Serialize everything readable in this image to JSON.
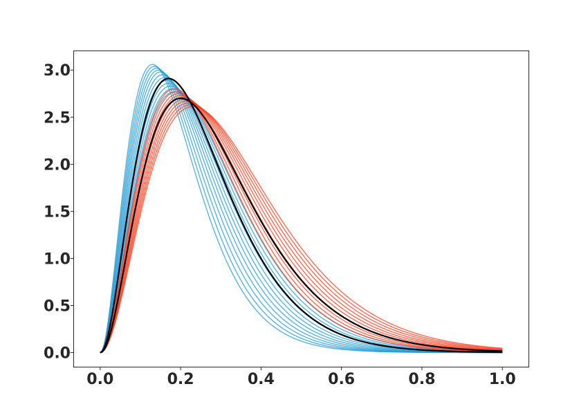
{
  "chart_data": {
    "type": "line",
    "title": "",
    "xlabel": "",
    "ylabel": "",
    "xlim": [
      -0.065,
      1.065
    ],
    "ylim": [
      -0.15,
      3.2
    ],
    "x_ticks": [
      0.0,
      0.2,
      0.4,
      0.6,
      0.8,
      1.0
    ],
    "x_tick_labels": [
      "0.0",
      "0.2",
      "0.4",
      "0.6",
      "0.8",
      "1.0"
    ],
    "y_ticks": [
      0.0,
      0.5,
      1.0,
      1.5,
      2.0,
      2.5,
      3.0
    ],
    "y_tick_labels": [
      "0.0",
      "0.5",
      "1.0",
      "1.5",
      "2.0",
      "2.5",
      "3.0"
    ],
    "grid": false,
    "legend": "none",
    "colors": {
      "blue": "#1f9bd6",
      "red": "#ff3a1a",
      "black": "#000000",
      "axes": "#262626"
    },
    "series": [
      {
        "group": "blue-ensemble",
        "color": "#1f9bd6",
        "peak_x": 0.13,
        "peak_y": 3.06
      },
      {
        "group": "blue-ensemble",
        "color": "#1f9bd6",
        "peak_x": 0.135,
        "peak_y": 3.04
      },
      {
        "group": "blue-ensemble",
        "color": "#1f9bd6",
        "peak_x": 0.14,
        "peak_y": 3.02
      },
      {
        "group": "blue-ensemble",
        "color": "#1f9bd6",
        "peak_x": 0.145,
        "peak_y": 3.0
      },
      {
        "group": "blue-ensemble",
        "color": "#1f9bd6",
        "peak_x": 0.15,
        "peak_y": 2.98
      },
      {
        "group": "blue-ensemble",
        "color": "#1f9bd6",
        "peak_x": 0.155,
        "peak_y": 2.95
      },
      {
        "group": "blue-ensemble",
        "color": "#1f9bd6",
        "peak_x": 0.16,
        "peak_y": 2.92
      },
      {
        "group": "blue-ensemble",
        "color": "#1f9bd6",
        "peak_x": 0.165,
        "peak_y": 2.89
      },
      {
        "group": "blue-ensemble",
        "color": "#1f9bd6",
        "peak_x": 0.17,
        "peak_y": 2.86
      },
      {
        "group": "blue-ensemble",
        "color": "#1f9bd6",
        "peak_x": 0.175,
        "peak_y": 2.83
      },
      {
        "group": "blue-ensemble",
        "color": "#1f9bd6",
        "peak_x": 0.18,
        "peak_y": 2.8
      },
      {
        "group": "blue-ensemble",
        "color": "#1f9bd6",
        "peak_x": 0.185,
        "peak_y": 2.77
      },
      {
        "group": "red-ensemble",
        "color": "#ff3a1a",
        "peak_x": 0.185,
        "peak_y": 2.8
      },
      {
        "group": "red-ensemble",
        "color": "#ff3a1a",
        "peak_x": 0.19,
        "peak_y": 2.77
      },
      {
        "group": "red-ensemble",
        "color": "#ff3a1a",
        "peak_x": 0.195,
        "peak_y": 2.75
      },
      {
        "group": "red-ensemble",
        "color": "#ff3a1a",
        "peak_x": 0.2,
        "peak_y": 2.73
      },
      {
        "group": "red-ensemble",
        "color": "#ff3a1a",
        "peak_x": 0.205,
        "peak_y": 2.71
      },
      {
        "group": "red-ensemble",
        "color": "#ff3a1a",
        "peak_x": 0.21,
        "peak_y": 2.69
      },
      {
        "group": "red-ensemble",
        "color": "#ff3a1a",
        "peak_x": 0.215,
        "peak_y": 2.67
      },
      {
        "group": "red-ensemble",
        "color": "#ff3a1a",
        "peak_x": 0.22,
        "peak_y": 2.65
      },
      {
        "group": "red-ensemble",
        "color": "#ff3a1a",
        "peak_x": 0.225,
        "peak_y": 2.63
      },
      {
        "group": "red-ensemble",
        "color": "#ff3a1a",
        "peak_x": 0.23,
        "peak_y": 2.61
      },
      {
        "group": "black-reference",
        "color": "#000000",
        "peak_x": 0.17,
        "peak_y": 2.91
      },
      {
        "group": "black-reference",
        "color": "#000000",
        "peak_x": 0.2,
        "peak_y": 2.7
      }
    ]
  }
}
